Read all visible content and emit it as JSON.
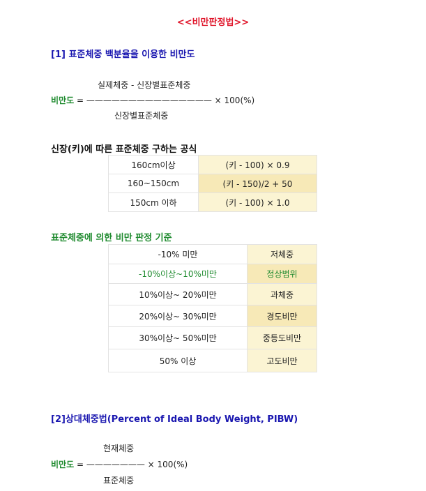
{
  "title": "<<비만판정법>>",
  "section1": {
    "heading": "[1] 표준체중 백분율을 이용한 비만도",
    "formula": {
      "numerator": "실제체중 - 신장별표준체중",
      "label": "비만도",
      "equals": "=",
      "bar": "———————————————",
      "times": "× 100(%)",
      "denominator": "신장별표준체중"
    }
  },
  "height_formula": {
    "heading": "신장(키)에 따른 표준체중 구하는 공식",
    "rows": [
      {
        "range": "160cm이상",
        "formula": "(키 - 100) × 0.9"
      },
      {
        "range": "160~150cm",
        "formula": "(키 - 150)/2 + 50"
      },
      {
        "range": "150cm 이하",
        "formula": "(키 - 100) × 1.0"
      }
    ]
  },
  "criteria": {
    "heading": "표준체중에 의한 비만 판정 기준",
    "rows": [
      {
        "range": "-10% 미만",
        "result": "저체중"
      },
      {
        "range": "-10%이상~10%미만",
        "result": "정상범위"
      },
      {
        "range": "10%이상~ 20%미만",
        "result": "과체중"
      },
      {
        "range": "20%이상~ 30%미만",
        "result": "경도비만"
      },
      {
        "range": "30%이상~ 50%미만",
        "result": "중등도비만"
      },
      {
        "range": "50% 이상",
        "result": "고도비만"
      }
    ]
  },
  "section2": {
    "heading": "[2]상대체중법(Percent of Ideal Body Weight, PIBW)",
    "formula": {
      "numerator": "현재체중",
      "label": "비만도",
      "equals": "=",
      "bar": "———————",
      "times": "× 100(%)",
      "denominator": "표준체중"
    }
  }
}
